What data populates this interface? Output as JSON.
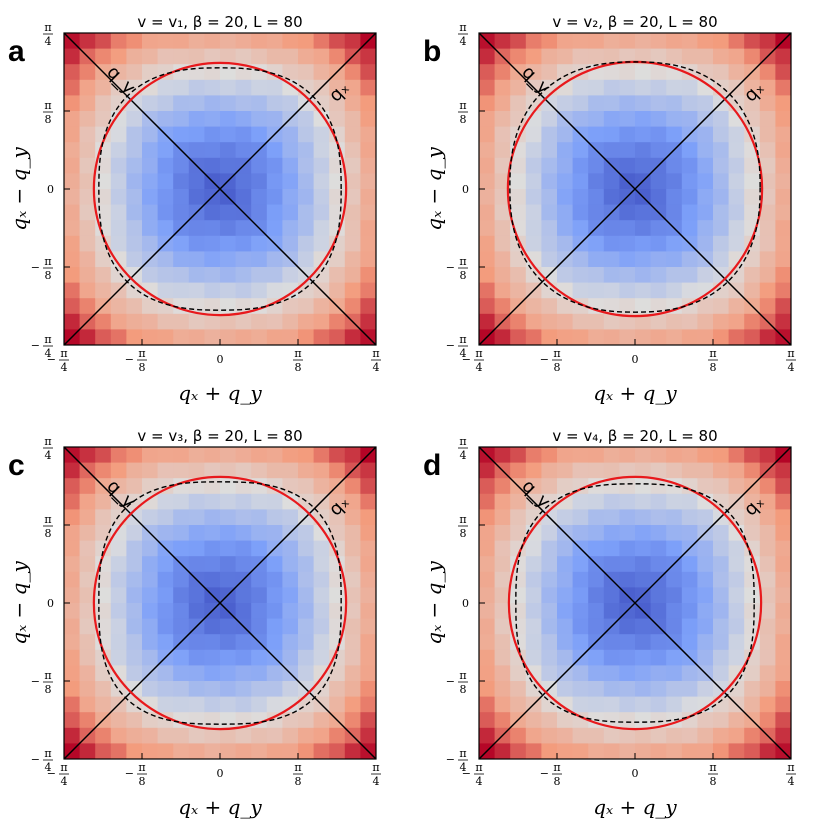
{
  "chart_data": [
    {
      "type": "heatmap",
      "panel_label": "a",
      "title": "v = v₁, β = 20, L = 80",
      "xlabel": "qₓ + q_y",
      "ylabel": "qₓ − q_y",
      "xlim": [
        -0.7854,
        0.7854
      ],
      "ylim": [
        -0.7854,
        0.7854
      ],
      "x_ticks": [
        -0.7854,
        -0.3927,
        0,
        0.3927,
        0.7854
      ],
      "y_ticks": [
        -0.7854,
        -0.3927,
        0,
        0.3927,
        0.7854
      ],
      "x_tick_labels": [
        "−π/4",
        "−π/8",
        "0",
        "π/8",
        "π/4"
      ],
      "y_tick_labels": [
        "−π/4",
        "−π/8",
        "0",
        "π/8",
        "π/4"
      ],
      "grid_cells": 20,
      "line_labels": [
        "q_y",
        "qₓ"
      ],
      "red_circle_radius": 0.635,
      "dashed_contour": {
        "amplitude": 0.61,
        "exponent": 2.6,
        "y_shift": 0.0
      },
      "colormap": "coolwarm"
    },
    {
      "type": "heatmap",
      "panel_label": "b",
      "title": "v = v₂, β = 20, L = 80",
      "xlabel": "qₓ + q_y",
      "ylabel": "qₓ − q_y",
      "xlim": [
        -0.7854,
        0.7854
      ],
      "ylim": [
        -0.7854,
        0.7854
      ],
      "x_ticks": [
        -0.7854,
        -0.3927,
        0,
        0.3927,
        0.7854
      ],
      "y_ticks": [
        -0.7854,
        -0.3927,
        0,
        0.3927,
        0.7854
      ],
      "x_tick_labels": [
        "−π/4",
        "−π/8",
        "0",
        "π/8",
        "π/4"
      ],
      "y_tick_labels": [
        "−π/4",
        "−π/8",
        "0",
        "π/8",
        "π/4"
      ],
      "grid_cells": 20,
      "line_labels": [
        "q_y",
        "qₓ"
      ],
      "red_circle_radius": 0.64,
      "dashed_contour": {
        "amplitude": 0.63,
        "exponent": 2.4,
        "y_shift": 0.01
      },
      "colormap": "coolwarm"
    },
    {
      "type": "heatmap",
      "panel_label": "c",
      "title": "v = v₃, β = 20, L = 80",
      "xlabel": "qₓ + q_y",
      "ylabel": "qₓ − q_y",
      "xlim": [
        -0.7854,
        0.7854
      ],
      "ylim": [
        -0.7854,
        0.7854
      ],
      "x_ticks": [
        -0.7854,
        -0.3927,
        0,
        0.3927,
        0.7854
      ],
      "y_ticks": [
        -0.7854,
        -0.3927,
        0,
        0.3927,
        0.7854
      ],
      "x_tick_labels": [
        "−π/4",
        "−π/8",
        "0",
        "π/8",
        "π/4"
      ],
      "y_tick_labels": [
        "−π/4",
        "−π/8",
        "0",
        "π/8",
        "π/4"
      ],
      "grid_cells": 20,
      "line_labels": [
        "q_y",
        "qₓ"
      ],
      "red_circle_radius": 0.635,
      "dashed_contour": {
        "amplitude": 0.61,
        "exponent": 2.8,
        "y_shift": 0.0
      },
      "colormap": "coolwarm"
    },
    {
      "type": "heatmap",
      "panel_label": "d",
      "title": "v = v₄, β = 20, L = 80",
      "xlabel": "qₓ + q_y",
      "ylabel": "qₓ − q_y",
      "xlim": [
        -0.7854,
        0.7854
      ],
      "ylim": [
        -0.7854,
        0.7854
      ],
      "x_ticks": [
        -0.7854,
        -0.3927,
        0,
        0.3927,
        0.7854
      ],
      "y_ticks": [
        -0.7854,
        -0.3927,
        0,
        0.3927,
        0.7854
      ],
      "x_tick_labels": [
        "−π/4",
        "−π/8",
        "0",
        "π/8",
        "π/4"
      ],
      "y_tick_labels": [
        "−π/4",
        "−π/8",
        "0",
        "π/8",
        "π/4"
      ],
      "grid_cells": 20,
      "line_labels": [
        "q_y",
        "qₓ"
      ],
      "red_circle_radius": 0.635,
      "dashed_contour": {
        "amplitude": 0.6,
        "exponent": 2.7,
        "y_shift": 0.0
      },
      "colormap": "coolwarm"
    }
  ],
  "colors": {
    "circle": "#e8191c",
    "lines": "#000000",
    "dashed": "#000000"
  }
}
